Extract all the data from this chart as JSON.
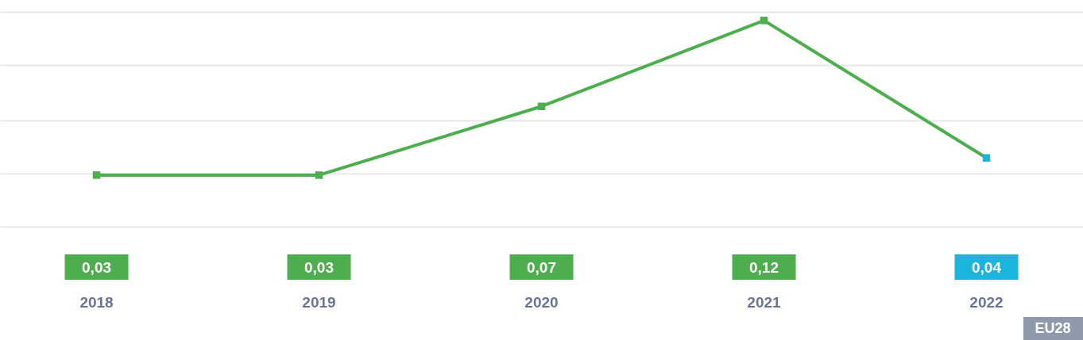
{
  "chart_data": {
    "type": "line",
    "categories": [
      "2018",
      "2019",
      "2020",
      "2021",
      "2022"
    ],
    "values": [
      0.03,
      0.03,
      0.07,
      0.12,
      0.04
    ],
    "color": "#4cae4c",
    "colors": [
      "#4cae4c",
      "#4cae4c",
      "#4cae4c",
      "#4cae4c",
      "#1ab5dc"
    ],
    "value_labels": [
      "0,03",
      "0,03",
      "0,07",
      "0,12",
      "0,04"
    ],
    "ylim": [
      0,
      0.125
    ],
    "yticks": [
      {
        "value": 0,
        "label": null
      },
      {
        "value": 0.031,
        "label": null
      },
      {
        "value": 0.062,
        "label": null
      },
      {
        "value": 0.094,
        "label": null
      },
      {
        "value": 0.125,
        "label": null
      }
    ],
    "grid": "y",
    "marker": "square",
    "line_style": "solid",
    "annotations": [
      "EU28"
    ]
  }
}
